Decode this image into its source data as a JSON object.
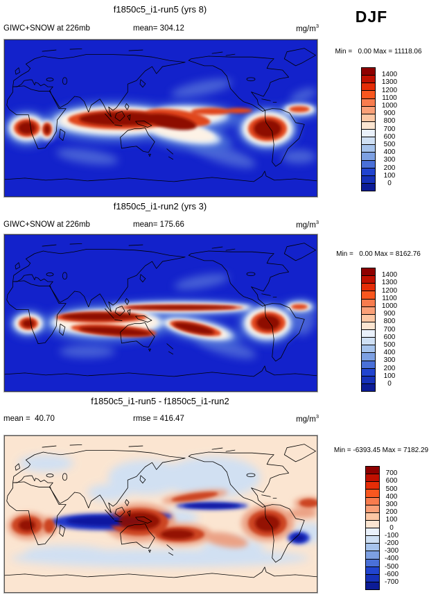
{
  "season": "DJF",
  "units": {
    "base": "mg/m",
    "exp": "3"
  },
  "palette": [
    "#8e0000",
    "#c01000",
    "#e52d07",
    "#f9571f",
    "#f87c4e",
    "#faa078",
    "#fcc7a4",
    "#fbe5d1",
    "#eaf1fb",
    "#cfe0f4",
    "#a6c3ec",
    "#7da0e2",
    "#4a70d8",
    "#2144cf",
    "#1631b8",
    "#0c1c96"
  ],
  "map_colors": {
    "ocean_blue": "#1322cb",
    "diff_background": "#fbe5d1",
    "diff_light_blue": "#cfe0f4",
    "coastline": "#000000"
  },
  "panels": [
    {
      "title": "f1850c5_i1-run5 (yrs 8)",
      "label_left": "GIWC+SNOW at 226mb",
      "label_mid": "mean= 304.12",
      "stats": "Min =   0.00 Max = 11118.06",
      "colorbar_labels": [
        "1400",
        "1300",
        "1200",
        "1100",
        "1000",
        "900",
        "800",
        "700",
        "600",
        "500",
        "400",
        "300",
        "200",
        "100",
        "0"
      ]
    },
    {
      "title": "f1850c5_i1-run2 (yrs 3)",
      "label_left": "GIWC+SNOW at 226mb",
      "label_mid": "mean= 175.66",
      "stats": "Min =   0.00 Max = 8162.76",
      "colorbar_labels": [
        "1400",
        "1300",
        "1200",
        "1100",
        "1000",
        "900",
        "800",
        "700",
        "600",
        "500",
        "400",
        "300",
        "200",
        "100",
        "0"
      ]
    },
    {
      "title": "f1850c5_i1-run5 - f1850c5_i1-run2",
      "label_left": "mean =  40.70",
      "label_mid": "rmse = 416.47",
      "stats": "Min = -6393.45 Max = 7182.29",
      "colorbar_labels": [
        "700",
        "600",
        "500",
        "400",
        "300",
        "200",
        "100",
        "0",
        "-100",
        "-200",
        "-300",
        "-400",
        "-500",
        "-600",
        "-700"
      ]
    }
  ],
  "chart_data": [
    {
      "type": "heatmap",
      "subtype": "global-latlon-map",
      "season": "DJF",
      "title": "f1850c5_i1-run5 (yrs 8)",
      "variable": "GIWC+SNOW at 226mb",
      "units": "mg/m^3",
      "mean": 304.12,
      "min": 0.0,
      "max": 11118.06,
      "colorbar_levels": [
        0,
        100,
        200,
        300,
        400,
        500,
        600,
        700,
        800,
        900,
        1000,
        1100,
        1200,
        1300,
        1400
      ],
      "palette_high_to_low": [
        "#8e0000",
        "#c01000",
        "#e52d07",
        "#f9571f",
        "#f87c4e",
        "#faa078",
        "#fcc7a4",
        "#fbe5d1",
        "#eaf1fb",
        "#cfe0f4",
        "#a6c3ec",
        "#7da0e2",
        "#4a70d8",
        "#2144cf",
        "#1631b8",
        "#0c1c96"
      ],
      "legend_position": "right",
      "notes": "high values (dark red) along tropical convective regions: Africa, Indian Ocean, Maritime Continent, SPCZ, ITCZ, South America"
    },
    {
      "type": "heatmap",
      "subtype": "global-latlon-map",
      "season": "DJF",
      "title": "f1850c5_i1-run2 (yrs 3)",
      "variable": "GIWC+SNOW at 226mb",
      "units": "mg/m^3",
      "mean": 175.66,
      "min": 0.0,
      "max": 8162.76,
      "colorbar_levels": [
        0,
        100,
        200,
        300,
        400,
        500,
        600,
        700,
        800,
        900,
        1000,
        1100,
        1200,
        1300,
        1400
      ],
      "palette_high_to_low": [
        "#8e0000",
        "#c01000",
        "#e52d07",
        "#f9571f",
        "#f87c4e",
        "#faa078",
        "#fcc7a4",
        "#fbe5d1",
        "#eaf1fb",
        "#cfe0f4",
        "#a6c3ec",
        "#7da0e2",
        "#4a70d8",
        "#2144cf",
        "#1631b8",
        "#0c1c96"
      ],
      "legend_position": "right",
      "notes": "narrower tropical bands of high values than run5"
    },
    {
      "type": "heatmap",
      "subtype": "global-latlon-difference-map",
      "season": "DJF",
      "title": "f1850c5_i1-run5 - f1850c5_i1-run2",
      "variable": "GIWC+SNOW at 226mb difference",
      "units": "mg/m^3",
      "mean": 40.7,
      "rmse": 416.47,
      "min": -6393.45,
      "max": 7182.29,
      "colorbar_levels": [
        -700,
        -600,
        -500,
        -400,
        -300,
        -200,
        -100,
        0,
        100,
        200,
        300,
        400,
        500,
        600,
        700
      ],
      "palette_high_to_low": [
        "#8e0000",
        "#c01000",
        "#e52d07",
        "#f9571f",
        "#f87c4e",
        "#faa078",
        "#fcc7a4",
        "#fbe5d1",
        "#eaf1fb",
        "#cfe0f4",
        "#a6c3ec",
        "#7da0e2",
        "#4a70d8",
        "#2144cf",
        "#1631b8",
        "#0c1c96"
      ],
      "legend_position": "right",
      "notes": "positive (red) over Africa, Maritime Continent, South America; negative (blue) over Indian Ocean and east Pacific ITCZ"
    }
  ]
}
